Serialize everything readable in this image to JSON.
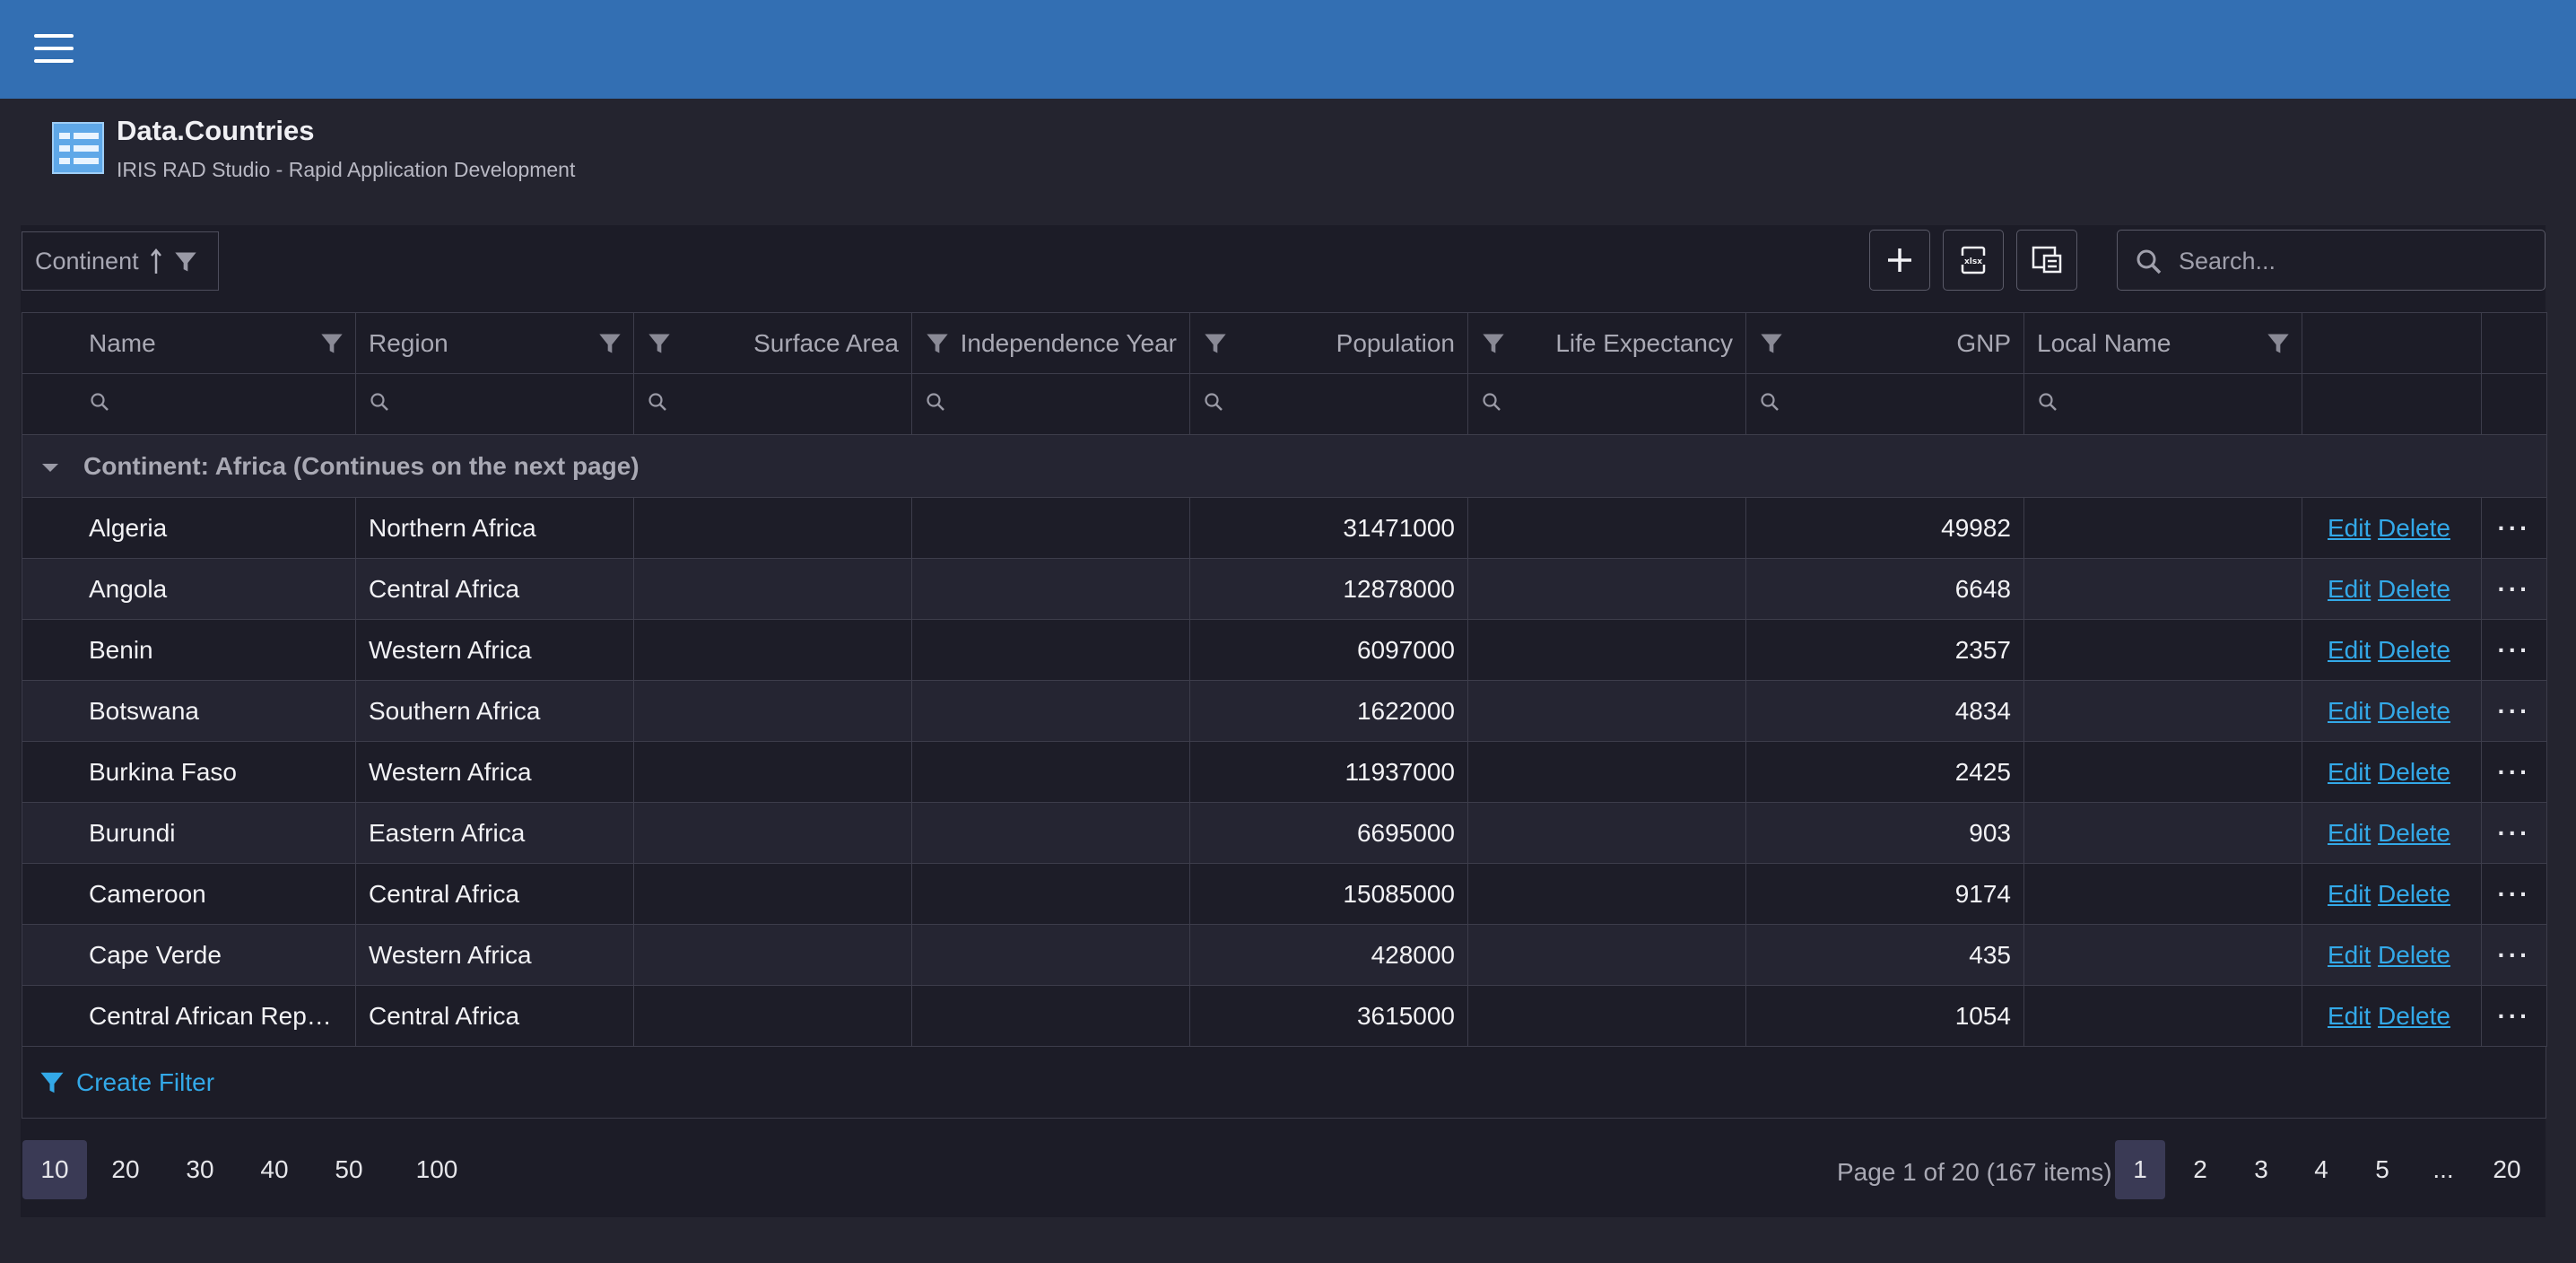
{
  "header": {
    "menu_icon": "hamburger-menu-icon",
    "accent": "#336fb3"
  },
  "page": {
    "title": "Data.Countries",
    "subtitle": "IRIS RAD Studio - Rapid Application Development",
    "icon": "table-list-icon"
  },
  "toolbar": {
    "group_chip": "Continent",
    "add_icon": "plus-icon",
    "export_icon": "xlsx-export-icon",
    "chooser_icon": "column-chooser-icon",
    "search_placeholder": "Search..."
  },
  "columns": [
    "Name",
    "Region",
    "Surface Area",
    "Independence Year",
    "Population",
    "Life Expectancy",
    "GNP",
    "Local Name"
  ],
  "group": {
    "label": "Continent: Africa (Continues on the next page)"
  },
  "rows": [
    {
      "name": "Algeria",
      "region": "Northern Africa",
      "population": "31471000",
      "gnp": "49982"
    },
    {
      "name": "Angola",
      "region": "Central Africa",
      "population": "12878000",
      "gnp": "6648"
    },
    {
      "name": "Benin",
      "region": "Western Africa",
      "population": "6097000",
      "gnp": "2357"
    },
    {
      "name": "Botswana",
      "region": "Southern Africa",
      "population": "1622000",
      "gnp": "4834"
    },
    {
      "name": "Burkina Faso",
      "region": "Western Africa",
      "population": "11937000",
      "gnp": "2425"
    },
    {
      "name": "Burundi",
      "region": "Eastern Africa",
      "population": "6695000",
      "gnp": "903"
    },
    {
      "name": "Cameroon",
      "region": "Central Africa",
      "population": "15085000",
      "gnp": "9174"
    },
    {
      "name": "Cape Verde",
      "region": "Western Africa",
      "population": "428000",
      "gnp": "435"
    },
    {
      "name": "Central African Rep…",
      "region": "Central Africa",
      "population": "3615000",
      "gnp": "1054"
    }
  ],
  "actions": {
    "edit": "Edit",
    "delete": "Delete",
    "more": "···"
  },
  "footer": {
    "create_filter": "Create Filter"
  },
  "pager": {
    "sizes": [
      "10",
      "20",
      "30",
      "40",
      "50",
      "100"
    ],
    "info": "Page 1 of 20 (167 items)",
    "pages": [
      "1",
      "2",
      "3",
      "4",
      "5",
      "...",
      "20"
    ]
  }
}
